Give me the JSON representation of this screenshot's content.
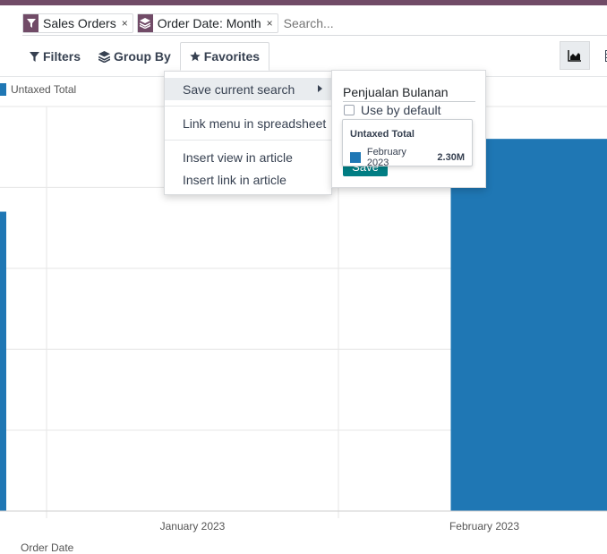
{
  "search": {
    "facets": [
      {
        "label": "Sales Orders",
        "icon": "filter-icon"
      },
      {
        "label": "Order Date: Month",
        "icon": "layers-icon"
      }
    ],
    "placeholder": "Search..."
  },
  "filter_bar": {
    "filters_label": "Filters",
    "group_by_label": "Group By",
    "favorites_label": "Favorites"
  },
  "favorites_menu": {
    "items": [
      {
        "label": "Save current search"
      },
      {
        "label": "Link menu in spreadsheet"
      },
      {
        "label": "Insert view in article"
      },
      {
        "label": "Insert link in article"
      }
    ]
  },
  "save_search": {
    "name_value": "Penjualan Bulanan",
    "use_default_label": "Use by default",
    "save_label": "Save"
  },
  "tooltip": {
    "title": "Untaxed Total",
    "category": "February 2023",
    "value": "2.30M"
  },
  "chart_data": {
    "type": "bar",
    "categories": [
      "January 2023",
      "February 2023"
    ],
    "series": [
      {
        "name": "Untaxed Total",
        "values": [
          1.85,
          2.3
        ],
        "color": "#1f77b4"
      }
    ],
    "xlabel": "Order Date",
    "ylabel": "",
    "ylim": [
      0,
      2.5
    ],
    "legend": "top-left",
    "grid": true
  },
  "colors": {
    "brand": "#714b67",
    "bar": "#1f77b4",
    "save": "#017e84"
  }
}
